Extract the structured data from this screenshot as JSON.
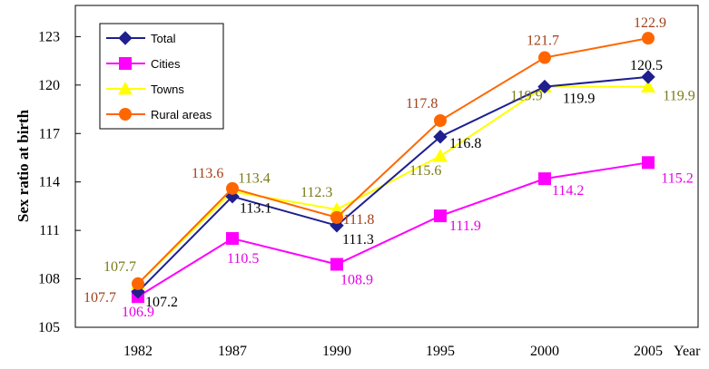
{
  "chart_data": {
    "type": "line",
    "title": "",
    "ylabel": "Sex ratio at birth",
    "xlabel": "Year",
    "categories": [
      "1982",
      "1987",
      "1990",
      "1995",
      "2000",
      "2005"
    ],
    "ylim": [
      105,
      125
    ],
    "yticks": [
      105,
      108,
      111,
      114,
      117,
      120,
      123
    ],
    "grid": false,
    "legend_position": "top-left",
    "series": [
      {
        "name": "Total",
        "values": [
          107.2,
          113.1,
          111.3,
          116.8,
          119.9,
          120.5
        ],
        "color": "#1F1F8F",
        "marker": "diamond",
        "label_color": "#000000",
        "labels": [
          "107.2",
          "113.1",
          "111.3",
          "116.8",
          "119.9",
          "120.5"
        ]
      },
      {
        "name": "Cities",
        "values": [
          106.9,
          110.5,
          108.9,
          111.9,
          114.2,
          115.2
        ],
        "color": "#FF00FF",
        "marker": "square",
        "label_color": "#E600E6",
        "labels": [
          "106.9",
          "110.5",
          "108.9",
          "111.9",
          "114.2",
          "115.2"
        ]
      },
      {
        "name": "Towns",
        "values": [
          107.7,
          113.4,
          112.3,
          115.6,
          119.9,
          119.9
        ],
        "color": "#FFFF00",
        "marker": "triangle",
        "label_color": "#7A7A1A",
        "labels": [
          "107.7",
          "113.4",
          "112.3",
          "115.6",
          "119.9",
          "119.9"
        ]
      },
      {
        "name": "Rural areas",
        "values": [
          107.7,
          113.6,
          111.8,
          117.8,
          121.7,
          122.9
        ],
        "color": "#FF6600",
        "marker": "circle",
        "label_color": "#A0401A",
        "labels": [
          "107.7",
          "113.6",
          "111.8",
          "117.8",
          "121.7",
          "122.9"
        ]
      }
    ]
  }
}
